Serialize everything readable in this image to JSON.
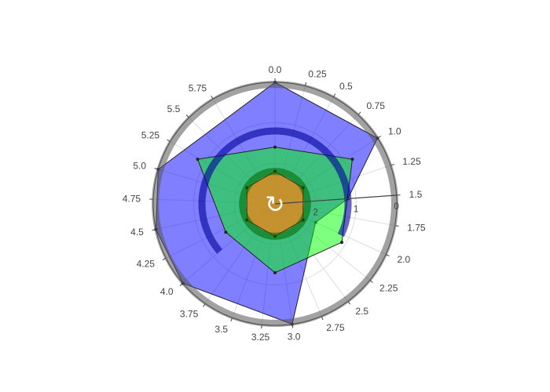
{
  "chart_data": {
    "type": "polar-area",
    "angular_unit": "radians",
    "angular_direction": "clockwise",
    "angular_zero": "top",
    "angular_ticks": [
      "0.0",
      "0.25",
      "0.5",
      "0.75",
      "1.0",
      "1.25",
      "1.5",
      "1.75",
      "2.0",
      "2.25",
      "2.5",
      "2.75",
      "3.0",
      "3.25",
      "3.5",
      "3.75",
      "4.0",
      "4.25",
      "4.5",
      "4.75",
      "5.0",
      "5.25",
      "5.5",
      "5.75"
    ],
    "radial_axis": {
      "range": [
        3,
        0
      ],
      "ticks": [
        "2",
        "1",
        "0"
      ],
      "angle_label": "1.5"
    },
    "series": [
      {
        "color": "#0000ff",
        "opacity": 0.5,
        "theta": [
          0,
          1,
          1.5,
          2,
          3,
          4,
          4.5,
          5,
          6.2832
        ],
        "r": [
          0,
          0,
          1.2,
          1.9,
          0,
          0,
          0,
          0,
          0
        ]
      },
      {
        "color": "#00ff00",
        "opacity": 0.5,
        "theta": [
          0,
          1.0472,
          2.0944,
          3.1416,
          4.1888,
          5.236,
          6.2832
        ],
        "r": [
          1.6,
          0.8,
          1.1,
          1.3,
          1.6,
          0.8,
          1.6
        ]
      },
      {
        "color": "#ff7f0e",
        "opacity": 0.7,
        "theta": [
          0,
          1.0472,
          2.0944,
          3.1416,
          4.1888,
          5.236,
          6.2832
        ],
        "r": [
          2.2,
          2.2,
          2.2,
          2.2,
          2.2,
          2.2,
          2.2
        ]
      }
    ],
    "bands": [
      {
        "r": 0.05,
        "color": "#555555"
      },
      {
        "r": 1.2,
        "color": "#00009a",
        "theta_range": [
          4.0,
          8.3
        ]
      },
      {
        "r": 2.2,
        "color": "#006600"
      }
    ]
  },
  "ui": {
    "reset_icon": "↻"
  }
}
